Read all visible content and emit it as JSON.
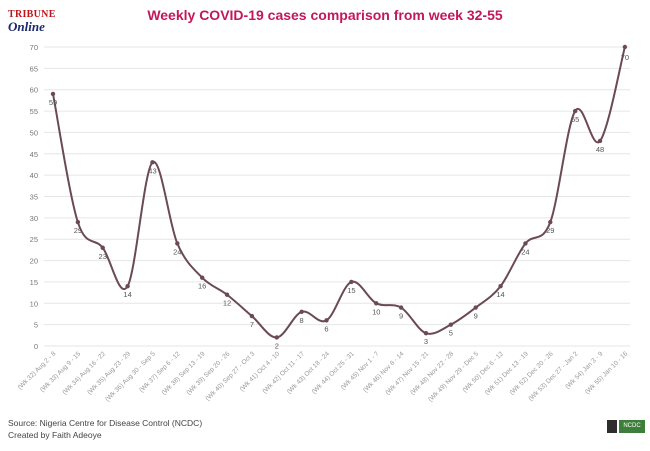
{
  "logo": {
    "top": "TRIBUNE",
    "bottom": "Online"
  },
  "footer": {
    "source": "Source: Nigeria Centre for Disease Control (NCDC)",
    "credit": "Created by Faith Adeoye"
  },
  "badge": {
    "text": "NCDC"
  },
  "colors": {
    "title": "#c2185b",
    "line": "#6b4a55",
    "grid": "#e6e6e6"
  },
  "chart_data": {
    "type": "line",
    "title": "Weekly COVID-19 cases comparison from week 32-55",
    "xlabel": "",
    "ylabel": "",
    "ylim": [
      0,
      70
    ],
    "yticks": [
      0,
      5,
      10,
      15,
      20,
      25,
      30,
      35,
      40,
      45,
      50,
      55,
      60,
      65,
      70
    ],
    "grid": true,
    "smooth": true,
    "categories": [
      "(Wk 32) Aug 2 - 8",
      "(Wk 33) Aug 9 - 15",
      "(Wk 34) Aug 16 - 22",
      "(Wk 35) Aug 23 - 29",
      "(Wk 36) Aug 30 - Sep 5",
      "(Wk 37) Sep 6 - 12",
      "(Wk 38) Sep 13 - 19",
      "(Wk 39) Sep 20 - 26",
      "(Wk 40) Sep 27 - Oct 3",
      "(Wk 41) Oct 4 - 10",
      "(Wk 42) Oct 11 - 17",
      "(Wk 43) Oct 18 - 24",
      "(Wk 44) Oct 25 - 31",
      "(Wk 45) Nov 1 - 7",
      "(Wk 46) Nov 8 - 14",
      "(Wk 47) Nov 15 - 21",
      "(Wk 48) Nov 22 - 28",
      "(Wk 49) Nov 29 - Dec 5",
      "(Wk 50) Dec 6 - 12",
      "(Wk 51) Dec 13 - 19",
      "(Wk 52) Dec 20 - 26",
      "(Wk 53) Dec 27 - Jan 2",
      "(Wk 54) Jan 3 - 9",
      "(Wk 55) Jan 10 - 16"
    ],
    "values": [
      59,
      29,
      23,
      14,
      43,
      24,
      16,
      12,
      7,
      2,
      8,
      6,
      15,
      10,
      9,
      3,
      5,
      9,
      14,
      24,
      29,
      55,
      48,
      70
    ]
  }
}
